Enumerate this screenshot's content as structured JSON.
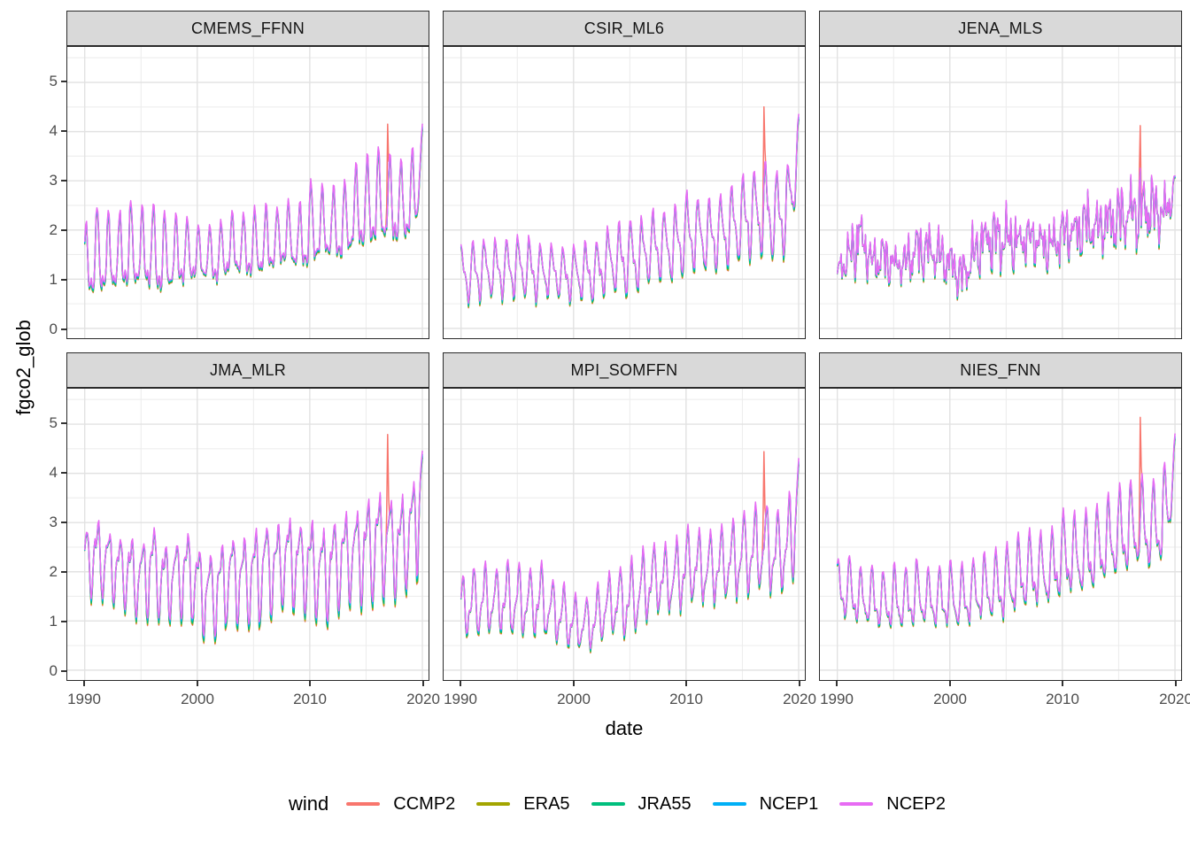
{
  "axes": {
    "x_title": "date",
    "y_title": "fgco2_glob",
    "x_ticks": [
      1990,
      2000,
      2010,
      2020
    ],
    "x_minor": [
      1995,
      2005,
      2015
    ],
    "y_ticks": [
      0,
      1,
      2,
      3,
      4,
      5
    ],
    "y_minor": [
      0.5,
      1.5,
      2.5,
      3.5,
      4.5,
      5.5
    ],
    "x_domain": [
      1988.45,
      2020.55
    ],
    "y_domain": [
      -0.2,
      5.72
    ]
  },
  "style": {
    "strip_bg": "#D9D9D9",
    "panel_border": "#2b2b2b",
    "grid_major": "#E2E2E2",
    "grid_minor": "#EDEDED",
    "tick_label_color": "#4D4D4D",
    "tick_color": "#333333",
    "line_width": 1.5
  },
  "legend": {
    "title": "wind",
    "items": [
      {
        "label": "CCMP2",
        "color": "#F8766D"
      },
      {
        "label": "ERA5",
        "color": "#A3A500"
      },
      {
        "label": "JRA55",
        "color": "#00BF7D"
      },
      {
        "label": "NCEP1",
        "color": "#00B0F6"
      },
      {
        "label": "NCEP2",
        "color": "#E76BF3"
      }
    ]
  },
  "chart_data": {
    "type": "line",
    "xlabel": "date",
    "ylabel": "fgco2_glob",
    "x_range": [
      1990,
      2020
    ],
    "ylim": [
      0,
      5
    ],
    "sampling": "monthly seasonal cycle; per-year seasonal peak/trough envelope read from plot",
    "legend_position": "bottom",
    "grid": true,
    "series": [
      {
        "name": "CCMP2",
        "color": "#F8766D",
        "top": 0.9,
        "bottom": 1.05
      },
      {
        "name": "ERA5",
        "color": "#A3A500",
        "top": 0.9,
        "bottom": 1.03
      },
      {
        "name": "JRA55",
        "color": "#00BF7D",
        "top": 0.92,
        "bottom": 1.0
      },
      {
        "name": "NCEP1",
        "color": "#00B0F6",
        "top": 0.95,
        "bottom": 0.94
      },
      {
        "name": "NCEP2",
        "color": "#E76BF3",
        "top": 1.0,
        "bottom": 0.9
      }
    ],
    "facets": [
      {
        "title": "CMEMS_FFNN",
        "seed": 0.3,
        "season": 0.8,
        "wiggle": 0.35,
        "noise": 0.08,
        "years_start": 1990,
        "peak": [
          2.1,
          2.55,
          2.4,
          2.35,
          2.65,
          2.5,
          2.6,
          2.4,
          2.35,
          2.3,
          2.1,
          2.1,
          2.2,
          2.4,
          2.35,
          2.5,
          2.55,
          2.45,
          2.65,
          2.5,
          3.05,
          2.95,
          2.9,
          3.0,
          3.35,
          3.55,
          3.7,
          3.55,
          3.45,
          3.6,
          4.15
        ],
        "trough": [
          0.3,
          0.3,
          0.4,
          0.5,
          0.45,
          0.5,
          0.45,
          0.3,
          0.55,
          0.65,
          0.8,
          0.75,
          0.65,
          0.9,
          0.8,
          0.75,
          0.8,
          1.0,
          1.05,
          0.9,
          0.85,
          1.1,
          1.15,
          1.0,
          1.3,
          1.2,
          1.35,
          1.4,
          1.35,
          1.5,
          1.8
        ],
        "spike": {
          "year": 2016.92,
          "value": 4.2
        }
      },
      {
        "title": "CSIR_ML6",
        "seed": 1.7,
        "season": 0.8,
        "wiggle": 0.35,
        "noise": 0.08,
        "years_start": 1990,
        "peak": [
          1.7,
          1.85,
          1.9,
          1.85,
          1.9,
          1.95,
          1.9,
          1.8,
          1.75,
          1.7,
          1.75,
          1.8,
          1.85,
          2.1,
          2.2,
          2.35,
          2.3,
          2.45,
          2.5,
          2.55,
          2.85,
          2.75,
          2.7,
          2.8,
          3.0,
          3.2,
          3.35,
          3.5,
          3.3,
          3.45,
          4.35
        ],
        "trough": [
          0.45,
          0.4,
          0.5,
          0.55,
          0.5,
          0.55,
          0.5,
          0.45,
          0.6,
          0.5,
          0.45,
          0.5,
          0.4,
          0.65,
          0.6,
          0.5,
          0.7,
          0.85,
          0.9,
          0.8,
          1.0,
          1.1,
          1.0,
          1.1,
          1.1,
          1.2,
          1.3,
          1.3,
          1.2,
          1.4,
          2.1
        ],
        "spike": {
          "year": 2016.92,
          "value": 4.55
        }
      },
      {
        "title": "JENA_MLS",
        "seed": 2.9,
        "season": 0.5,
        "wiggle": 0.3,
        "noise": 0.5,
        "years_start": 1990,
        "peak": [
          1.5,
          2.0,
          2.75,
          1.8,
          2.1,
          1.7,
          1.8,
          2.3,
          2.2,
          2.1,
          1.9,
          1.6,
          2.2,
          2.4,
          2.6,
          2.6,
          2.3,
          2.4,
          2.3,
          2.2,
          2.6,
          2.5,
          2.9,
          2.6,
          2.9,
          3.0,
          3.1,
          3.4,
          3.2,
          3.0,
          3.1
        ],
        "trough": [
          0.85,
          0.9,
          1.0,
          0.9,
          0.8,
          0.9,
          0.85,
          0.9,
          1.0,
          0.9,
          0.8,
          0.5,
          0.7,
          1.2,
          1.1,
          1.0,
          1.2,
          1.3,
          1.2,
          1.1,
          1.3,
          1.4,
          1.3,
          1.5,
          1.4,
          1.5,
          1.6,
          1.5,
          1.7,
          1.6,
          2.2
        ],
        "spike": {
          "year": 2016.92,
          "value": 4.15
        }
      },
      {
        "title": "JMA_MLR",
        "seed": 4.1,
        "season": 0.8,
        "wiggle": 0.35,
        "noise": 0.08,
        "years_start": 1990,
        "peak": [
          3.05,
          3.3,
          3.05,
          2.9,
          2.9,
          2.8,
          3.25,
          2.75,
          2.8,
          3.1,
          2.75,
          2.6,
          2.75,
          3.0,
          2.9,
          3.1,
          3.3,
          3.15,
          3.35,
          3.25,
          3.3,
          3.1,
          3.3,
          3.4,
          3.45,
          3.75,
          3.9,
          3.8,
          3.7,
          4.1,
          4.45
        ],
        "trough": [
          1.45,
          1.3,
          1.4,
          1.2,
          1.1,
          0.9,
          1.0,
          0.85,
          1.0,
          0.9,
          0.8,
          0.45,
          0.65,
          0.9,
          0.8,
          0.75,
          0.9,
          1.1,
          1.2,
          1.1,
          1.0,
          0.85,
          0.9,
          1.2,
          1.3,
          1.1,
          1.3,
          1.4,
          1.3,
          1.6,
          1.7
        ],
        "spike": {
          "year": 2016.92,
          "value": 4.85
        }
      },
      {
        "title": "MPI_SOMFFN",
        "seed": 5.3,
        "season": 0.8,
        "wiggle": 0.35,
        "noise": 0.08,
        "years_start": 1990,
        "peak": [
          1.95,
          2.15,
          2.25,
          2.1,
          2.3,
          2.25,
          2.1,
          2.3,
          1.9,
          1.85,
          1.6,
          1.5,
          1.75,
          2.0,
          2.15,
          2.3,
          2.5,
          2.65,
          2.6,
          2.7,
          3.0,
          2.9,
          2.9,
          2.95,
          3.1,
          3.3,
          3.4,
          3.5,
          3.3,
          3.5,
          4.3
        ],
        "trough": [
          0.6,
          0.55,
          0.55,
          0.7,
          0.6,
          0.5,
          0.65,
          0.5,
          0.55,
          0.4,
          0.3,
          0.35,
          0.3,
          0.65,
          0.6,
          0.5,
          0.75,
          1.0,
          1.1,
          1.0,
          1.2,
          1.3,
          1.2,
          1.3,
          1.3,
          1.4,
          1.4,
          1.5,
          1.4,
          1.5,
          1.6
        ],
        "spike": {
          "year": 2016.92,
          "value": 4.5
        }
      },
      {
        "title": "NIES_FNN",
        "seed": 0.9,
        "season": 0.8,
        "wiggle": 0.35,
        "noise": 0.08,
        "years_start": 1990,
        "peak": [
          2.25,
          2.4,
          2.1,
          2.15,
          2.05,
          2.2,
          2.1,
          2.3,
          2.1,
          2.15,
          2.25,
          2.2,
          2.3,
          2.4,
          2.5,
          2.6,
          2.8,
          2.9,
          2.85,
          2.9,
          3.3,
          3.25,
          3.3,
          3.4,
          3.6,
          3.8,
          3.9,
          4.0,
          3.9,
          4.2,
          4.8
        ],
        "trough": [
          1.0,
          0.85,
          0.8,
          0.75,
          0.7,
          0.65,
          0.7,
          0.75,
          0.8,
          0.7,
          0.75,
          0.65,
          0.85,
          0.9,
          0.85,
          0.9,
          1.0,
          1.1,
          1.2,
          1.1,
          1.3,
          1.4,
          1.3,
          1.5,
          1.6,
          1.7,
          1.8,
          1.9,
          1.8,
          2.0,
          2.6
        ],
        "spike": {
          "year": 2016.92,
          "value": 5.2
        }
      }
    ]
  }
}
